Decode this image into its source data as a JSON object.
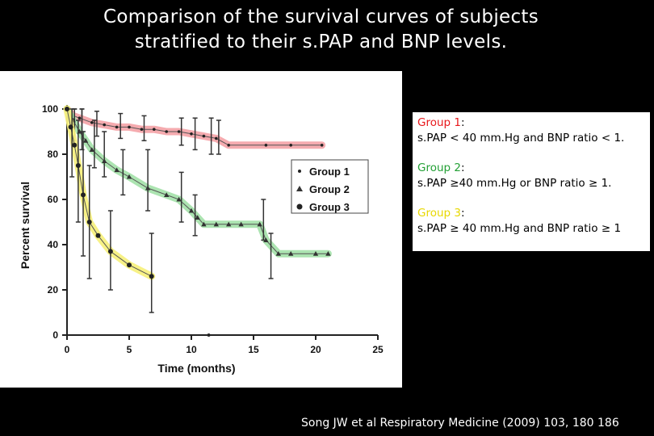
{
  "slide": {
    "title_line1": "Comparison of the survival curves of subjects",
    "title_line2": "stratified to their s.PAP and BNP levels.",
    "citation": "Song JW et al Respiratory Medicine (2009) 103, 180 186"
  },
  "legend_box": {
    "groups": [
      {
        "label": "Group 1",
        "suffix": ":",
        "desc": "s.PAP < 40 mm.Hg and BNP ratio < 1.",
        "label_color": "#e8181c"
      },
      {
        "label": "Group 2",
        "suffix": ":",
        "desc": "s.PAP  ≥40 mm.Hg or BNP ratio ≥ 1.",
        "label_color": "#23a035"
      },
      {
        "label": "Group 3",
        "suffix": ":",
        "desc": "s.PAP ≥ 40 mm.Hg and BNP ratio ≥ 1",
        "label_color": "#e8d800"
      }
    ]
  },
  "chart_data": {
    "type": "line",
    "xlabel": "Time (months)",
    "ylabel": "Percent survival",
    "xlim": [
      0,
      25
    ],
    "ylim": [
      0,
      100
    ],
    "x_ticks": [
      "0",
      "5",
      "10",
      "15",
      "20",
      "25"
    ],
    "y_ticks": [
      "0",
      "20",
      "40",
      "60",
      "80",
      "100"
    ],
    "legend_position": "right",
    "grid": false,
    "series": [
      {
        "name": "Group 1",
        "marker": "small-dot",
        "highlight_color": "#f4a6ab",
        "x": [
          0,
          0.5,
          1,
          2,
          3,
          4,
          5,
          6,
          7,
          8,
          9,
          10,
          11,
          12,
          13,
          16,
          18,
          20.5
        ],
        "y": [
          100,
          97,
          96,
          94,
          93,
          92,
          92,
          91,
          91,
          90,
          90,
          89,
          88,
          87,
          84,
          84,
          84,
          84
        ],
        "error_x": [
          0.6,
          1.2,
          2.4,
          4.3,
          6.2,
          9.2,
          10.3,
          11.6,
          12.2
        ],
        "error_lo": [
          92,
          90,
          88,
          87,
          86,
          84,
          82,
          80,
          80
        ],
        "error_hi": [
          100,
          100,
          99,
          98,
          97,
          96,
          96,
          96,
          95
        ]
      },
      {
        "name": "Group 2",
        "marker": "triangle",
        "highlight_color": "#a8e3ad",
        "x": [
          0,
          0.5,
          1,
          1.5,
          2,
          3,
          4,
          5,
          6.5,
          8,
          9,
          10,
          10.5,
          11,
          12,
          13,
          14,
          15.5,
          16,
          17,
          18,
          20,
          21
        ],
        "y": [
          100,
          95,
          90,
          86,
          82,
          77,
          73,
          70,
          65,
          62,
          60,
          55,
          52,
          49,
          49,
          49,
          49,
          49,
          42,
          36,
          36,
          36,
          36
        ],
        "error_x": [
          0.6,
          1.2,
          2.2,
          3.0,
          4.5,
          6.5,
          9.2,
          10.3,
          15.8,
          16.4
        ],
        "error_lo": [
          86,
          82,
          74,
          70,
          62,
          55,
          50,
          44,
          42,
          25
        ],
        "error_hi": [
          100,
          100,
          95,
          90,
          82,
          82,
          72,
          62,
          60,
          45
        ]
      },
      {
        "name": "Group 3",
        "marker": "large-dot",
        "highlight_color": "#f7f080",
        "x": [
          0,
          0.3,
          0.6,
          0.9,
          1.3,
          1.8,
          2.5,
          3.5,
          5,
          6.8
        ],
        "y": [
          100,
          92,
          84,
          75,
          62,
          50,
          44,
          37,
          31,
          26
        ],
        "error_x": [
          0.4,
          0.9,
          1.3,
          1.8,
          3.5,
          6.8
        ],
        "error_lo": [
          70,
          50,
          35,
          25,
          20,
          10
        ],
        "error_hi": [
          100,
          95,
          90,
          75,
          55,
          45
        ]
      }
    ]
  }
}
